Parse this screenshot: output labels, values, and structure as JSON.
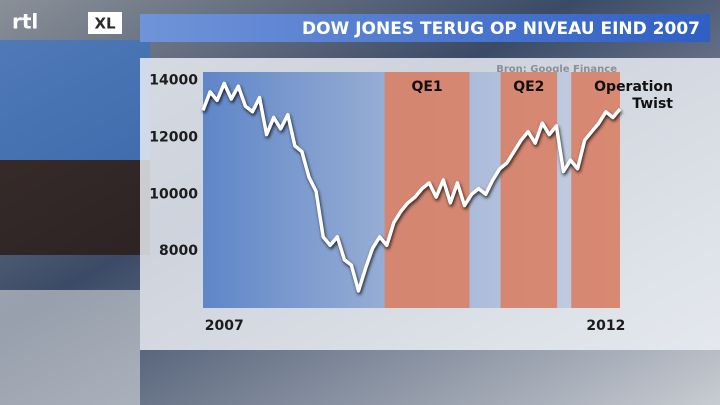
{
  "logo": {
    "brand": "rtl",
    "product": "XL"
  },
  "chart_data": {
    "type": "line",
    "title": "DOW JONES TERUG OP NIVEAU EIND 2007",
    "source": "Bron: Google Finance",
    "categories": [
      null,
      null,
      null,
      "2007",
      null,
      null,
      null,
      null,
      null,
      null,
      null,
      null,
      null,
      null,
      null,
      null,
      null,
      null,
      null,
      null,
      null,
      null,
      null,
      null,
      null,
      null,
      null,
      null,
      null,
      null,
      null,
      null,
      null,
      null,
      null,
      null,
      null,
      null,
      null,
      null,
      null,
      null,
      null,
      null,
      null,
      null,
      null,
      null,
      null,
      null,
      null,
      null,
      null,
      null,
      null,
      null,
      null,
      "2012",
      null,
      null
    ],
    "values": [
      12950,
      13600,
      13300,
      13900,
      13350,
      13800,
      13100,
      12900,
      13400,
      12100,
      12700,
      12300,
      12800,
      11700,
      11500,
      10600,
      10100,
      8500,
      8200,
      8500,
      7700,
      7500,
      6600,
      7400,
      8100,
      8500,
      8200,
      9000,
      9400,
      9700,
      9900,
      10200,
      10400,
      9900,
      10500,
      9700,
      10400,
      9600,
      10000,
      10200,
      10000,
      10500,
      10900,
      11100,
      11500,
      11900,
      12200,
      11800,
      12500,
      12100,
      12400,
      10800,
      11200,
      10900,
      11900,
      12200,
      12500,
      12900,
      12700,
      13000
    ],
    "color": "#ffffff",
    "ylim": [
      6000,
      14300
    ],
    "yticks": [
      8000,
      10000,
      12000,
      14000
    ],
    "grid": false,
    "bands": [
      {
        "label_lines": [
          "QE1"
        ],
        "start": 25.7,
        "end": 37.7,
        "color": "#d98268"
      },
      {
        "label_lines": [
          "QE2"
        ],
        "start": 42.1,
        "end": 50.1,
        "color": "#d98268"
      },
      {
        "label_lines": [
          "Operation",
          "Twist"
        ],
        "start": 52.1,
        "end": 59,
        "color": "#d98268"
      }
    ]
  }
}
